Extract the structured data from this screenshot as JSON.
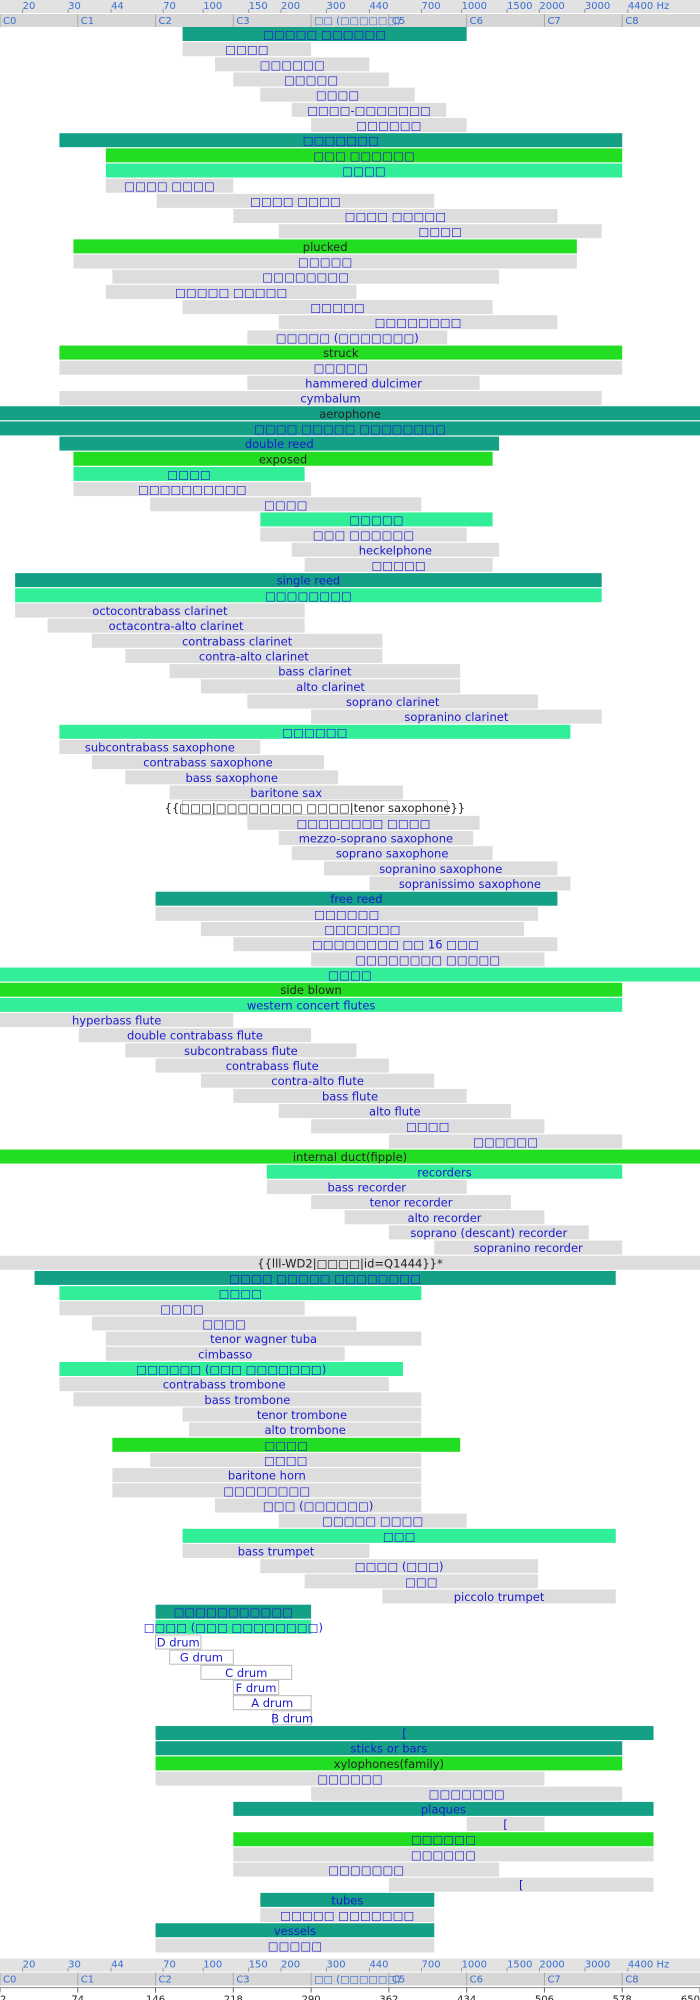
{
  "chart_data": {
    "type": "range_bar",
    "xlim": [
      2,
      650
    ],
    "xticks": [
      2,
      74,
      146,
      218,
      290,
      362,
      434,
      506,
      578,
      650
    ],
    "note_labels": [
      "C0",
      "C1",
      "C2",
      "C3",
      "□□ (□□□□□□)",
      "C5",
      "C6",
      "C7",
      "C8"
    ],
    "freq_ticks": [
      20,
      30,
      44,
      70,
      100,
      150,
      200,
      300,
      440,
      700,
      1000,
      1500,
      2000,
      3000,
      {
        "value": 4400,
        "label": "4400 Hz"
      }
    ],
    "rows": [
      {
        "label": "□□□□□ □□□□□□",
        "range": [
          171,
          434
        ],
        "color": "#14a085"
      },
      {
        "label": "□□□□",
        "range": [
          171,
          290
        ],
        "color": "#dddddd"
      },
      {
        "label": "□□□□□□",
        "range": [
          201,
          344
        ],
        "color": "#dddddd"
      },
      {
        "label": "□□□□□",
        "range": [
          218,
          362
        ],
        "color": "#dddddd"
      },
      {
        "label": "□□□□",
        "range": [
          243,
          386
        ],
        "color": "#dddddd"
      },
      {
        "label": "□□□□-□□□□□□□",
        "range": [
          272,
          415
        ],
        "color": "#dddddd"
      },
      {
        "label": "□□□□□□",
        "range": [
          290,
          434
        ],
        "color": "#dddddd"
      },
      {
        "label": "□□□□□□□",
        "range": [
          57,
          578
        ],
        "color": "#14a085"
      },
      {
        "label": "□□□ □□□□□□",
        "range": [
          100,
          578
        ],
        "color": "#22dd22"
      },
      {
        "label": "□□□□",
        "range": [
          100,
          578
        ],
        "color": "#33ee99"
      },
      {
        "label": "□□□□ □□□□",
        "range": [
          100,
          218
        ],
        "color": "#dddddd"
      },
      {
        "label": "□□□□ □□□□",
        "range": [
          147,
          404
        ],
        "color": "#dddddd"
      },
      {
        "label": "□□□□ □□□□□",
        "range": [
          218,
          518
        ],
        "color": "#dddddd"
      },
      {
        "label": "□□□□",
        "range": [
          260,
          559
        ],
        "color": "#dddddd"
      },
      {
        "label": "plucked",
        "range": [
          70,
          536
        ],
        "color": "#22dd22",
        "label_color": "#222222"
      },
      {
        "label": "□□□□□",
        "range": [
          70,
          536
        ],
        "color": "#dddddd"
      },
      {
        "label": "□□□□□□□□",
        "range": [
          106,
          464
        ],
        "color": "#dddddd"
      },
      {
        "label": "□□□□□ □□□□□",
        "range": [
          100,
          332
        ],
        "color": "#dddddd"
      },
      {
        "label": "□□□□□",
        "range": [
          171,
          458
        ],
        "color": "#dddddd"
      },
      {
        "label": "□□□□□□□□",
        "range": [
          260,
          518
        ],
        "color": "#dddddd"
      },
      {
        "label": "□□□□□ (□□□□□□□)",
        "range": [
          231,
          416
        ],
        "color": "#dddddd"
      },
      {
        "label": "struck",
        "range": [
          57,
          578
        ],
        "color": "#22dd22",
        "label_color": "#222222"
      },
      {
        "label": "□□□□□",
        "range": [
          57,
          578
        ],
        "color": "#dddddd"
      },
      {
        "label": "hammered dulcimer",
        "range": [
          231,
          446
        ],
        "color": "#dddddd"
      },
      {
        "label": "cymbalum",
        "range": [
          57,
          559
        ],
        "color": "#dddddd"
      },
      {
        "label": "aerophone",
        "range": [
          2,
          650
        ],
        "color": "#14a085",
        "label_color": "#222222"
      },
      {
        "label": "□□□□ □□□□□ □□□□□□□□",
        "range": [
          2,
          650
        ],
        "color": "#14a085"
      },
      {
        "label": "double reed",
        "range": [
          57,
          464
        ],
        "color": "#14a085"
      },
      {
        "label": "exposed",
        "range": [
          70,
          458
        ],
        "color": "#22dd22",
        "label_color": "#222222"
      },
      {
        "label": "□□□□",
        "range": [
          70,
          284
        ],
        "color": "#33ee99"
      },
      {
        "label": "□□□□□□□□□□",
        "range": [
          70,
          290
        ],
        "color": "#dddddd"
      },
      {
        "label": "□□□□",
        "range": [
          141,
          392
        ],
        "color": "#dddddd"
      },
      {
        "label": "□□□□□",
        "range": [
          243,
          458
        ],
        "color": "#33ee99"
      },
      {
        "label": "□□□ □□□□□□",
        "range": [
          243,
          434
        ],
        "color": "#dddddd"
      },
      {
        "label": "heckelphone",
        "range": [
          272,
          464
        ],
        "color": "#dddddd"
      },
      {
        "label": "□□□□□",
        "range": [
          284,
          458
        ],
        "color": "#dddddd"
      },
      {
        "label": "single reed",
        "range": [
          16,
          559
        ],
        "color": "#14a085"
      },
      {
        "label": "□□□□□□□□",
        "range": [
          16,
          559
        ],
        "color": "#33ee99"
      },
      {
        "label": "octocontrabass clarinet",
        "range": [
          16,
          284
        ],
        "color": "#dddddd"
      },
      {
        "label": "octacontra-alto clarinet",
        "range": [
          46,
          284
        ],
        "color": "#dddddd"
      },
      {
        "label": "contrabass clarinet",
        "range": [
          87,
          356
        ],
        "color": "#dddddd"
      },
      {
        "label": "contra-alto clarinet",
        "range": [
          118,
          356
        ],
        "color": "#dddddd"
      },
      {
        "label": "bass clarinet",
        "range": [
          159,
          428
        ],
        "color": "#dddddd"
      },
      {
        "label": "alto clarinet",
        "range": [
          188,
          428
        ],
        "color": "#dddddd"
      },
      {
        "label": "soprano clarinet",
        "range": [
          231,
          500
        ],
        "color": "#dddddd"
      },
      {
        "label": "sopranino clarinet",
        "range": [
          290,
          559
        ],
        "color": "#dddddd"
      },
      {
        "label": "□□□□□□",
        "range": [
          57,
          530
        ],
        "color": "#33ee99"
      },
      {
        "label": "subcontrabass saxophone",
        "range": [
          57,
          243
        ],
        "color": "#dddddd"
      },
      {
        "label": "contrabass saxophone",
        "range": [
          87,
          302
        ],
        "color": "#dddddd"
      },
      {
        "label": "bass saxophone",
        "range": [
          118,
          315
        ],
        "color": "#dddddd"
      },
      {
        "label": "baritone sax",
        "range": [
          159,
          375
        ],
        "color": "#dddddd"
      },
      {
        "label": "{{□□□|□□□□□□□□ □□□□|tenor saxophone}}",
        "range": [
          171,
          416
        ],
        "color": "#ffffff",
        "label_color": "#222222"
      },
      {
        "label": "□□□□□□□□ □□□□",
        "range": [
          231,
          446
        ],
        "color": "#dddddd"
      },
      {
        "label": "mezzo-soprano saxophone",
        "range": [
          260,
          440
        ],
        "color": "#dddddd"
      },
      {
        "label": "soprano saxophone",
        "range": [
          272,
          458
        ],
        "color": "#dddddd"
      },
      {
        "label": "sopranino saxophone",
        "range": [
          302,
          518
        ],
        "color": "#dddddd"
      },
      {
        "label": "sopranissimo saxophone",
        "range": [
          344,
          530
        ],
        "color": "#dddddd"
      },
      {
        "label": "free reed",
        "range": [
          146,
          518
        ],
        "color": "#14a085"
      },
      {
        "label": "□□□□□□",
        "range": [
          146,
          500
        ],
        "color": "#dddddd"
      },
      {
        "label": "□□□□□□□",
        "range": [
          188,
          487
        ],
        "color": "#dddddd"
      },
      {
        "label": "□□□□□□□□ □□ 16 □□□",
        "range": [
          218,
          518
        ],
        "color": "#dddddd"
      },
      {
        "label": "□□□□□□□□ □□□□□",
        "range": [
          290,
          506
        ],
        "color": "#dddddd"
      },
      {
        "label": "□□□□",
        "range": [
          2,
          650
        ],
        "color": "#33ee99"
      },
      {
        "label": "side blown",
        "range": [
          2,
          578
        ],
        "color": "#22dd22",
        "label_color": "#222222"
      },
      {
        "label": "western concert flutes",
        "range": [
          2,
          578
        ],
        "color": "#33ee99"
      },
      {
        "label": "hyperbass flute",
        "range": [
          2,
          218
        ],
        "color": "#dddddd"
      },
      {
        "label": "double contrabass flute",
        "range": [
          75,
          290
        ],
        "color": "#dddddd"
      },
      {
        "label": "subcontrabass flute",
        "range": [
          118,
          332
        ],
        "color": "#dddddd"
      },
      {
        "label": "contrabass flute",
        "range": [
          146,
          362
        ],
        "color": "#dddddd"
      },
      {
        "label": "contra-alto flute",
        "range": [
          188,
          404
        ],
        "color": "#dddddd"
      },
      {
        "label": "bass flute",
        "range": [
          218,
          434
        ],
        "color": "#dddddd"
      },
      {
        "label": "alto flute",
        "range": [
          260,
          475
        ],
        "color": "#dddddd"
      },
      {
        "label": "□□□□",
        "range": [
          290,
          506
        ],
        "color": "#dddddd"
      },
      {
        "label": "□□□□□□",
        "range": [
          362,
          578
        ],
        "color": "#dddddd"
      },
      {
        "label": "internal duct(fipple)",
        "range": [
          2,
          650
        ],
        "color": "#22dd22",
        "label_color": "#222222"
      },
      {
        "label": "recorders",
        "range": [
          249,
          578
        ],
        "color": "#33ee99"
      },
      {
        "label": "bass recorder",
        "range": [
          249,
          434
        ],
        "color": "#dddddd"
      },
      {
        "label": "tenor recorder",
        "range": [
          290,
          475
        ],
        "color": "#dddddd"
      },
      {
        "label": "alto recorder",
        "range": [
          321,
          506
        ],
        "color": "#dddddd"
      },
      {
        "label": "soprano (descant) recorder",
        "range": [
          362,
          547
        ],
        "color": "#dddddd"
      },
      {
        "label": "sopranino recorder",
        "range": [
          404,
          578
        ],
        "color": "#dddddd"
      },
      {
        "label": "{{lll-WD2|□□□□|id=Q1444}}*",
        "range": [
          2,
          650
        ],
        "color": "#dddddd",
        "label_color": "#222222"
      },
      {
        "label": "□□□□ □□□□□ □□□□□□□□",
        "range": [
          34,
          572
        ],
        "color": "#14a085"
      },
      {
        "label": "□□□□",
        "range": [
          57,
          392
        ],
        "color": "#33ee99"
      },
      {
        "label": "□□□□",
        "range": [
          57,
          284
        ],
        "color": "#dddddd"
      },
      {
        "label": "□□□□",
        "range": [
          87,
          332
        ],
        "color": "#dddddd"
      },
      {
        "label": "tenor wagner tuba",
        "range": [
          100,
          392
        ],
        "color": "#dddddd"
      },
      {
        "label": "cimbasso",
        "range": [
          100,
          321
        ],
        "color": "#dddddd"
      },
      {
        "label": "□□□□□□ (□□□ □□□□□□□)",
        "range": [
          57,
          375
        ],
        "color": "#33ee99"
      },
      {
        "label": "contrabass trombone",
        "range": [
          57,
          362
        ],
        "color": "#dddddd"
      },
      {
        "label": "bass trombone",
        "range": [
          70,
          392
        ],
        "color": "#dddddd"
      },
      {
        "label": "tenor trombone",
        "range": [
          171,
          392
        ],
        "color": "#dddddd"
      },
      {
        "label": "alto trombone",
        "range": [
          177,
          392
        ],
        "color": "#dddddd"
      },
      {
        "label": "□□□□",
        "range": [
          106,
          428
        ],
        "color": "#22dd22"
      },
      {
        "label": "□□□□",
        "range": [
          141,
          392
        ],
        "color": "#dddddd"
      },
      {
        "label": "baritone horn",
        "range": [
          106,
          392
        ],
        "color": "#dddddd"
      },
      {
        "label": "□□□□□□□□",
        "range": [
          106,
          392
        ],
        "color": "#dddddd"
      },
      {
        "label": "□□□ (□□□□□□)",
        "range": [
          201,
          392
        ],
        "color": "#dddddd"
      },
      {
        "label": "□□□□□ □□□□",
        "range": [
          260,
          434
        ],
        "color": "#dddddd"
      },
      {
        "label": "□□□",
        "range": [
          171,
          572
        ],
        "color": "#33ee99"
      },
      {
        "label": "bass trumpet",
        "range": [
          171,
          344
        ],
        "color": "#dddddd"
      },
      {
        "label": "□□□□ (□□□)",
        "range": [
          243,
          500
        ],
        "color": "#dddddd"
      },
      {
        "label": "□□□",
        "range": [
          284,
          500
        ],
        "color": "#dddddd"
      },
      {
        "label": "piccolo trumpet",
        "range": [
          356,
          572
        ],
        "color": "#dddddd"
      },
      {
        "label": "□□□□□□□□□□□",
        "range": [
          146,
          290
        ],
        "color": "#14a085"
      },
      {
        "label": "□□□□ (□□□ □□□□□□□□)",
        "range": [
          146,
          290
        ],
        "color": "#33ee99"
      },
      {
        "label": "D drum",
        "range": [
          146,
          188
        ],
        "color": "#ffffff"
      },
      {
        "label": "G drum",
        "range": [
          159,
          218
        ],
        "color": "#ffffff"
      },
      {
        "label": "C drum",
        "range": [
          188,
          272
        ],
        "color": "#ffffff"
      },
      {
        "label": "F drum",
        "range": [
          218,
          260
        ],
        "color": "#ffffff"
      },
      {
        "label": "A drum",
        "range": [
          218,
          290
        ],
        "color": "#ffffff"
      },
      {
        "label": "B drum",
        "range": [
          255,
          290
        ],
        "color": "#ffffff"
      },
      {
        "label": "[",
        "range": [
          146,
          607
        ],
        "color": "#14a085"
      },
      {
        "label": "sticks or bars",
        "range": [
          146,
          578
        ],
        "color": "#14a085"
      },
      {
        "label": "xylophones(family)",
        "range": [
          146,
          578
        ],
        "color": "#22dd22",
        "label_color": "#222222"
      },
      {
        "label": "□□□□□□",
        "range": [
          146,
          506
        ],
        "color": "#dddddd"
      },
      {
        "label": "□□□□□□□",
        "range": [
          290,
          578
        ],
        "color": "#dddddd"
      },
      {
        "label": "plaques",
        "range": [
          218,
          607
        ],
        "color": "#14a085"
      },
      {
        "label": "[",
        "range": [
          434,
          506
        ],
        "color": "#dddddd"
      },
      {
        "label": "□□□□□□",
        "range": [
          218,
          607
        ],
        "color": "#22dd22"
      },
      {
        "label": "□□□□□□",
        "range": [
          218,
          607
        ],
        "color": "#dddddd"
      },
      {
        "label": "□□□□□□□",
        "range": [
          218,
          464
        ],
        "color": "#dddddd"
      },
      {
        "label": "[",
        "range": [
          362,
          607
        ],
        "color": "#dddddd"
      },
      {
        "label": "tubes",
        "range": [
          243,
          404
        ],
        "color": "#14a085"
      },
      {
        "label": "□□□□□ □□□□□□□",
        "range": [
          243,
          404
        ],
        "color": "#dddddd"
      },
      {
        "label": "vessels",
        "range": [
          146,
          404
        ],
        "color": "#14a085"
      },
      {
        "label": "□□□□□",
        "range": [
          146,
          404
        ],
        "color": "#dddddd"
      }
    ]
  }
}
